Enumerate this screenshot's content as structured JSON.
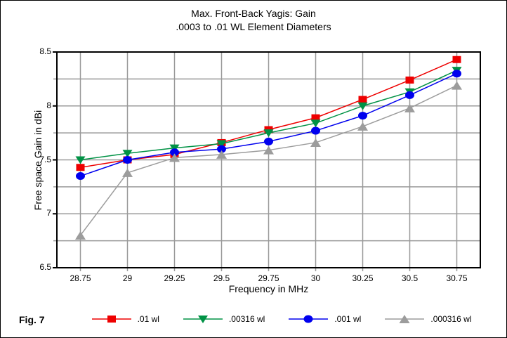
{
  "figure": {
    "title_line1": "Max. Front-Back Yagis: Gain",
    "title_line2": ".0003 to .01 WL Element Diameters",
    "caption": "Fig. 7"
  },
  "axes": {
    "x_label": "Frequency in MHz",
    "y_label": "Free space Gain in dBi",
    "x_tick_labels": [
      "28.75",
      "29",
      "29.25",
      "29.5",
      "29.75",
      "30",
      "30.25",
      "30.5",
      "30.75"
    ],
    "y_tick_labels": [
      "8.5",
      "8",
      "7.5",
      "7",
      "6.5"
    ]
  },
  "colors": {
    "gridline": "#999999",
    "axis_border": "#000000",
    "background": "#ffffff"
  },
  "chart_data": {
    "type": "line",
    "title": "Max. Front-Back Yagis: Gain",
    "subtitle": ".0003 to .01 WL Element Diameters",
    "xlabel": "Frequency in MHz",
    "ylabel": "Free space Gain in dBi",
    "x": [
      28.75,
      29,
      29.25,
      29.5,
      29.75,
      30,
      30.25,
      30.5,
      30.75
    ],
    "xlim": [
      28.625,
      30.875
    ],
    "ylim": [
      6.5,
      8.5
    ],
    "x_ticks": [
      28.75,
      29,
      29.25,
      29.5,
      29.75,
      30,
      30.25,
      30.5,
      30.75
    ],
    "y_ticks_major": [
      8.5,
      8,
      7.5,
      7,
      6.5
    ],
    "y_gridlines": [
      6.75,
      7,
      7.25,
      7.5,
      7.75,
      8,
      8.25
    ],
    "grid": "on",
    "legend_position": "bottom",
    "series": [
      {
        "name": ".01 wl",
        "color": "#ee0000",
        "marker": "square",
        "values": [
          7.43,
          7.5,
          7.55,
          7.66,
          7.78,
          7.89,
          8.06,
          8.24,
          8.43
        ]
      },
      {
        "name": ".00316 wl",
        "color": "#009245",
        "marker": "triangle-down",
        "values": [
          7.5,
          7.56,
          7.61,
          7.65,
          7.75,
          7.84,
          8.0,
          8.13,
          8.33
        ]
      },
      {
        "name": ".001 wl",
        "color": "#0000ee",
        "marker": "circle",
        "values": [
          7.35,
          7.5,
          7.57,
          7.6,
          7.67,
          7.77,
          7.91,
          8.1,
          8.3
        ]
      },
      {
        "name": ".000316 wl",
        "color": "#9c9c9c",
        "marker": "triangle-up",
        "values": [
          6.8,
          7.38,
          7.52,
          7.55,
          7.59,
          7.66,
          7.81,
          7.98,
          8.19
        ]
      }
    ]
  }
}
